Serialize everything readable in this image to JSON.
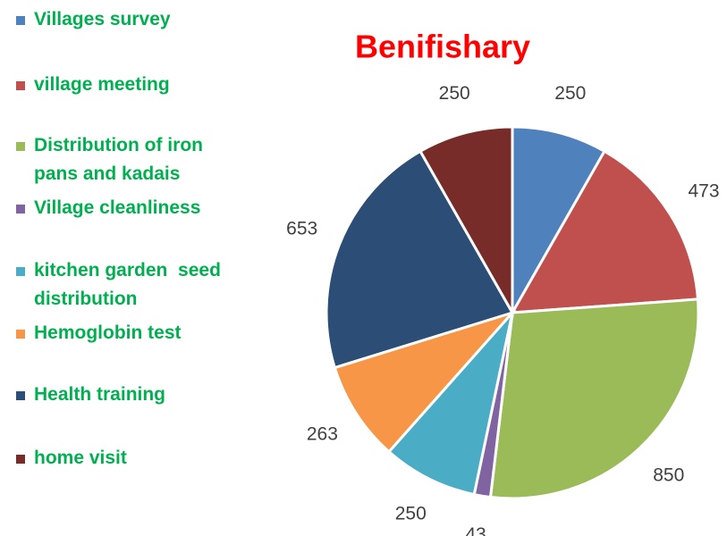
{
  "chart_data": {
    "type": "pie",
    "title": "Benifishary",
    "categories": [
      "Villages survey",
      "village meeting",
      "Distribution of iron pans and kadais",
      "Village cleanliness",
      "kitchen garden  seed distribution",
      "Hemoglobin test",
      "Health training",
      "home visit"
    ],
    "values": [
      250,
      473,
      850,
      43,
      250,
      263,
      653,
      250
    ],
    "colors": [
      "#4f81bd",
      "#c0504d",
      "#9bbb59",
      "#8064a2",
      "#4bacc6",
      "#f79646",
      "#2c4d75",
      "#772c2a"
    ],
    "legend": "left"
  }
}
